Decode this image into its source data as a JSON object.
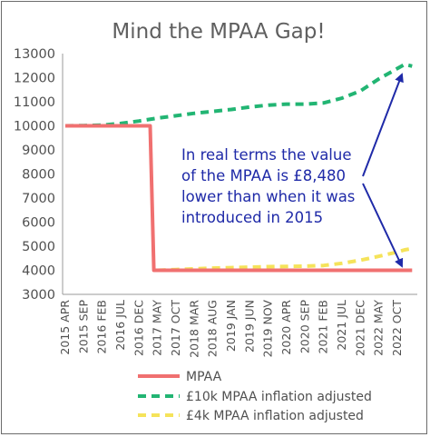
{
  "chart_data": {
    "type": "line",
    "title": "Mind the MPAA Gap!",
    "xlabel": "",
    "ylabel": "",
    "ylim": [
      3000,
      13000
    ],
    "yticks": [
      3000,
      4000,
      5000,
      6000,
      7000,
      8000,
      9000,
      10000,
      11000,
      12000,
      13000
    ],
    "grid": false,
    "legend_placement": "bottom",
    "x_tick_labels": [
      "2015 APR",
      "2015 SEP",
      "2016 FEB",
      "2016 JUL",
      "2016 DEC",
      "2017 MAY",
      "2017 OCT",
      "2018 MAR",
      "2018 AUG",
      "2019 JAN",
      "2019 JUN",
      "2019 NOV",
      "2020 APR",
      "2020 SEP",
      "2021 FEB",
      "2021 JUL",
      "2021 DEC",
      "2022 MAY",
      "2022 OCT"
    ],
    "series": [
      {
        "name": "MPAA",
        "color": "#f07070",
        "style": "solid",
        "points": [
          [
            "2015 APR",
            10000
          ],
          [
            "2017 MAR",
            10000
          ],
          [
            "2017 APR",
            4000
          ],
          [
            "2023 FEB",
            4000
          ]
        ]
      },
      {
        "name": "£10k MPAA inflation adjusted",
        "color": "#22b573",
        "style": "dashed",
        "points": [
          [
            "2015 APR",
            10000
          ],
          [
            "2015 SEP",
            10010
          ],
          [
            "2016 FEB",
            10030
          ],
          [
            "2016 JUL",
            10100
          ],
          [
            "2016 DEC",
            10200
          ],
          [
            "2017 MAY",
            10320
          ],
          [
            "2017 OCT",
            10420
          ],
          [
            "2018 MAR",
            10520
          ],
          [
            "2018 AUG",
            10600
          ],
          [
            "2019 JAN",
            10680
          ],
          [
            "2019 JUN",
            10780
          ],
          [
            "2019 NOV",
            10860
          ],
          [
            "2020 APR",
            10900
          ],
          [
            "2020 SEP",
            10900
          ],
          [
            "2021 FEB",
            10950
          ],
          [
            "2021 JUL",
            11150
          ],
          [
            "2021 DEC",
            11450
          ],
          [
            "2022 MAY",
            11950
          ],
          [
            "2022 OCT",
            12380
          ],
          [
            "2022 DEC",
            12550
          ],
          [
            "2023 FEB",
            12480
          ]
        ]
      },
      {
        "name": "£4k MPAA inflation adjusted",
        "color": "#f5e35a",
        "style": "dashed",
        "points": [
          [
            "2017 MAY",
            4000
          ],
          [
            "2017 OCT",
            4030
          ],
          [
            "2018 MAR",
            4060
          ],
          [
            "2018 AUG",
            4090
          ],
          [
            "2019 JAN",
            4110
          ],
          [
            "2019 JUN",
            4130
          ],
          [
            "2019 NOV",
            4150
          ],
          [
            "2020 APR",
            4160
          ],
          [
            "2020 SEP",
            4170
          ],
          [
            "2021 FEB",
            4200
          ],
          [
            "2021 JUL",
            4290
          ],
          [
            "2021 DEC",
            4420
          ],
          [
            "2022 MAY",
            4580
          ],
          [
            "2022 OCT",
            4760
          ],
          [
            "2022 DEC",
            4850
          ],
          [
            "2023 FEB",
            4900
          ]
        ]
      }
    ],
    "annotation": {
      "lines": [
        "In real terms the value",
        "of the MPAA is £8,480",
        "lower than when it was",
        "introduced in 2015"
      ],
      "color": "#1f2aa8"
    }
  }
}
